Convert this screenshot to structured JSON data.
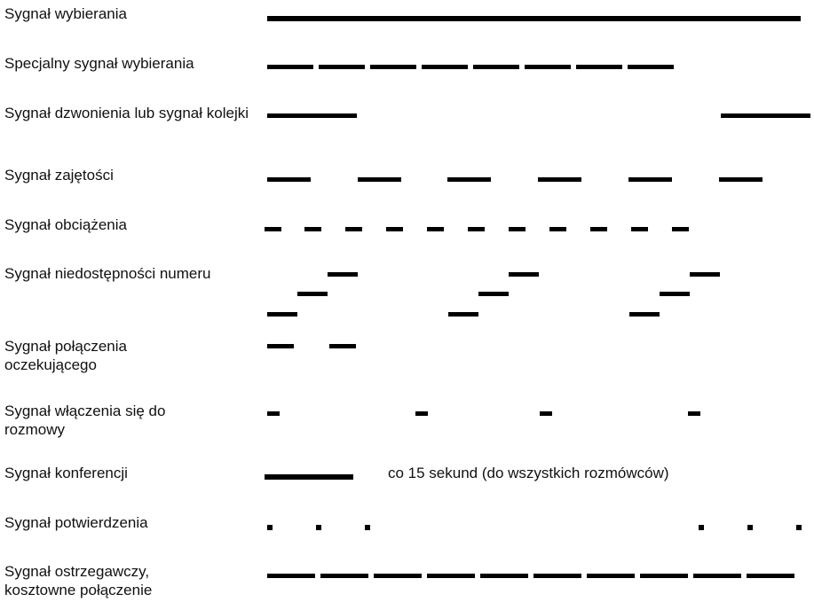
{
  "signals": [
    {
      "label": "Sygnał wybierania"
    },
    {
      "label": "Specjalny sygnał wybierania"
    },
    {
      "label": "Sygnał dzwonienia lub sygnał kolejki"
    },
    {
      "label": "Sygnał zajętości"
    },
    {
      "label": "Sygnał obciążenia"
    },
    {
      "label": "Sygnał niedostępności numeru"
    },
    {
      "label": "Sygnał połączenia oczekującego"
    },
    {
      "label": "Sygnał włączenia się do rozmowy"
    },
    {
      "label": "Sygnał konferencji",
      "note": "co 15 sekund (do wszystkich rozmówców)"
    },
    {
      "label": "Sygnał potwierdzenia"
    },
    {
      "label": "Sygnał ostrzegawczy, kosztowne połączenie"
    }
  ],
  "colors": {
    "pulse": "#000000",
    "text": "#111111",
    "background": "#ffffff"
  }
}
